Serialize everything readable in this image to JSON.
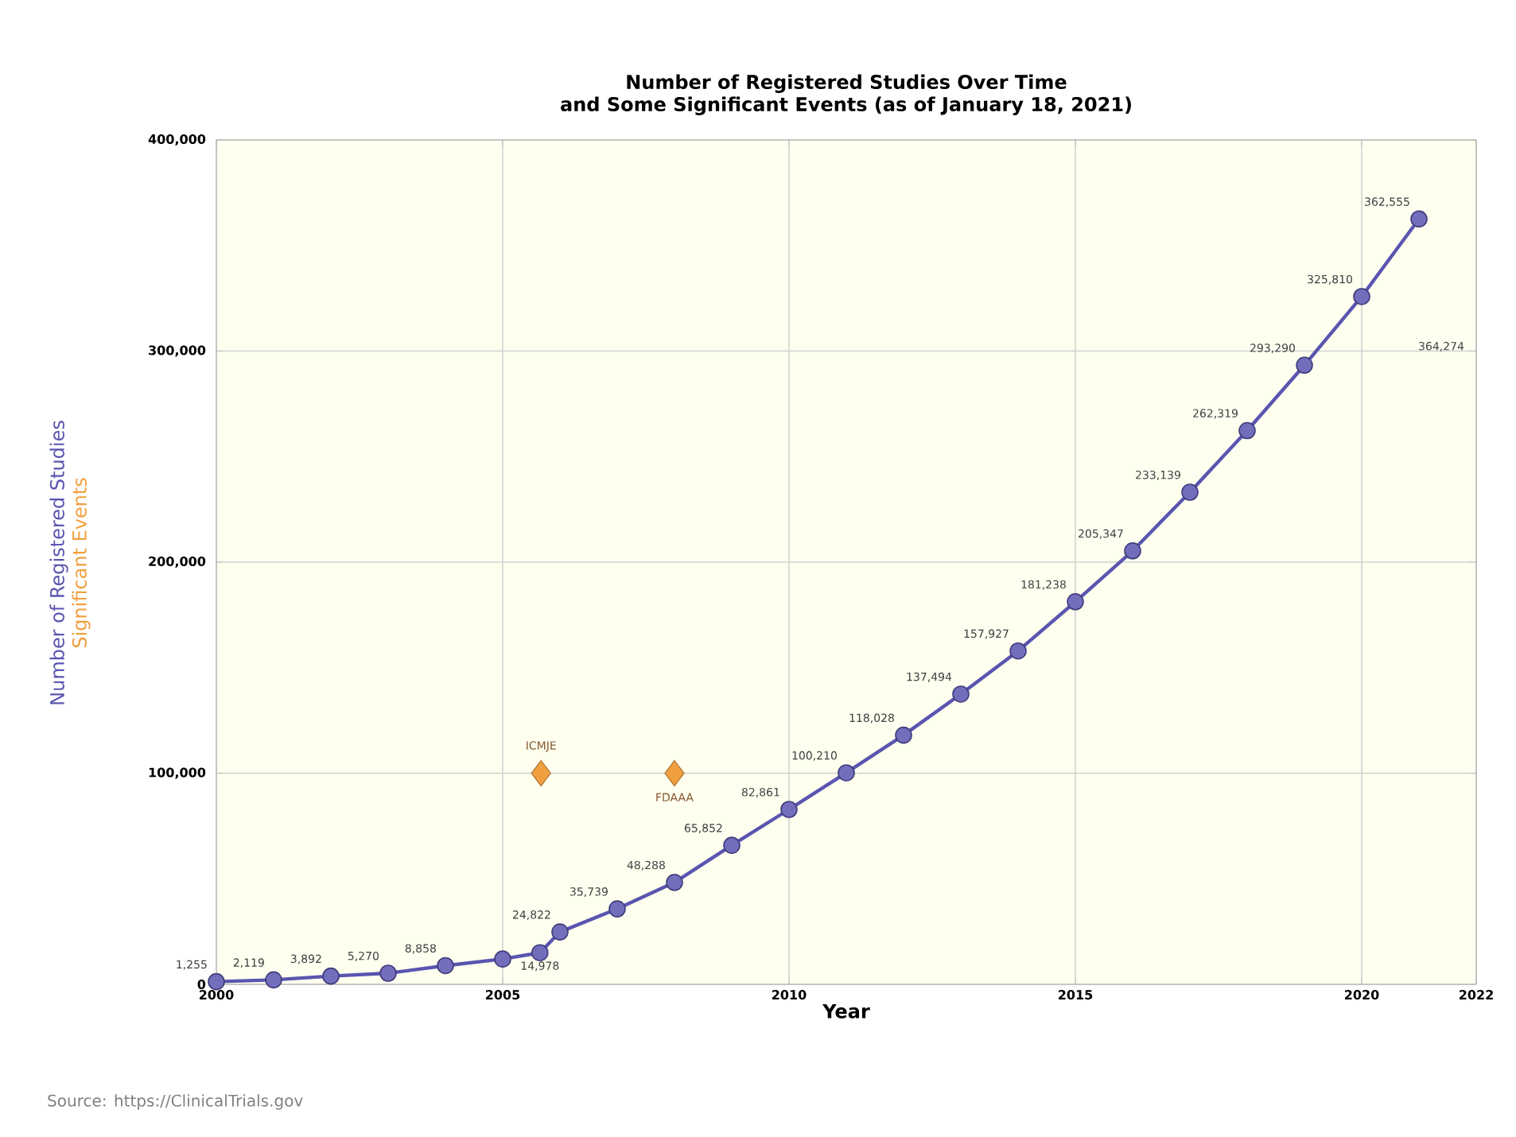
{
  "chart_data": {
    "type": "line",
    "title": "Number of Registered Studies Over Time\nand Some Significant Events (as of January 18, 2021)",
    "xlabel": "Year",
    "ylabel": "Number of Registered Studies",
    "xlim": [
      2000,
      2022
    ],
    "xticks": [
      2000,
      2005,
      2010,
      2015,
      2020,
      2022
    ],
    "ylim": [
      0,
      400000
    ],
    "yticks": [
      {
        "value": 0,
        "label": "0"
      },
      {
        "value": 100000,
        "label": "100,000"
      },
      {
        "value": 200000,
        "label": "200,000"
      },
      {
        "value": 300000,
        "label": "300,000"
      },
      {
        "value": 400000,
        "label": "400,000"
      }
    ],
    "grid": true,
    "marker": "circle",
    "line_style": "solid",
    "series": [
      {
        "color": "#5a55b0",
        "x": [
          2000,
          2001,
          2002,
          2003,
          2004,
          2005,
          2005.65,
          2006,
          2007,
          2008,
          2009,
          2010,
          2011,
          2012,
          2013,
          2014,
          2015,
          2016,
          2017,
          2018,
          2019,
          2020,
          2021
        ],
        "values": [
          1255,
          2119,
          3892,
          5270,
          8858,
          12000,
          14978,
          24822,
          35739,
          48288,
          65852,
          82861,
          100210,
          118028,
          137494,
          157927,
          181238,
          205347,
          233139,
          262319,
          293290,
          325810,
          362555
        ],
        "value_labels": [
          "1,255",
          "2,119",
          "3,892",
          "5,270",
          "8,858",
          null,
          "14,978",
          "24,822",
          "35,739",
          "48,288",
          "65,852",
          "82,861",
          "100,210",
          "118,028",
          "137,494",
          "157,927",
          "181,238",
          "205,347",
          "233,139",
          "262,319",
          "293,290",
          "325,810",
          "362,555"
        ]
      },
      {
        "type": "scatter",
        "name": "Significant Events",
        "color": "#f0a040",
        "marker": "diamond",
        "x": [
          2005.67,
          2008
        ],
        "values": [
          100000,
          100000
        ]
      }
    ],
    "annotations": [
      {
        "text": "ICMJE",
        "x": 2005.67,
        "y": 100000
      },
      {
        "text": "FDAAA",
        "x": 2008,
        "y": 100000
      },
      "364,274",
      "Source: https://ClinicalTrials.gov"
    ]
  }
}
